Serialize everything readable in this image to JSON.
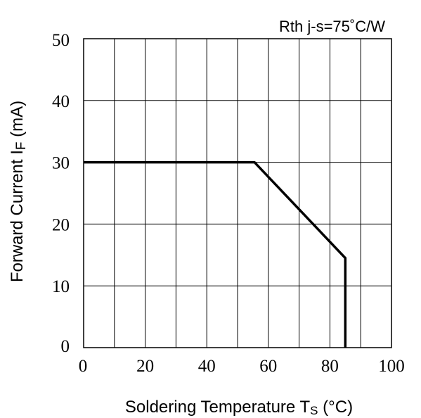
{
  "chart_data": {
    "type": "line",
    "annotation": "Rth j-s=75˚C/W",
    "xlabel": "Soldering Temperature Ts (°C)",
    "ylabel": "Forward Current IF (mA)",
    "xlim": [
      0,
      100
    ],
    "ylim": [
      0,
      50
    ],
    "x_ticks": [
      "0",
      "20",
      "40",
      "60",
      "80",
      "100"
    ],
    "y_ticks": [
      "0",
      "10",
      "20",
      "30",
      "40",
      "50"
    ],
    "grid": true,
    "series": [
      {
        "x": [
          0,
          55.5,
          85,
          85
        ],
        "y": [
          30,
          30,
          14.5,
          0
        ],
        "color": "#000000"
      }
    ]
  }
}
